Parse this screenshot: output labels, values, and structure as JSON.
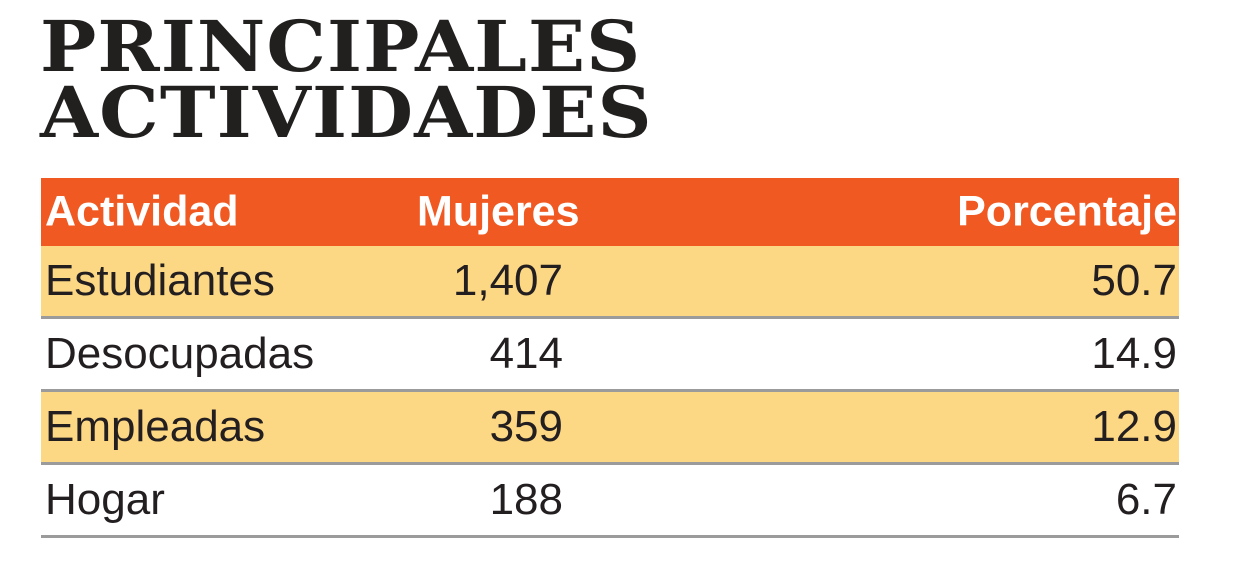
{
  "title": {
    "line1": "PRINCIPALES",
    "line2": "ACTIVIDADES"
  },
  "colors": {
    "header_background": "#f05a22",
    "header_text": "#ffffff",
    "shaded_row": "#fdd884",
    "row_rule": "#9b9b9b",
    "title_text": "#221f1f"
  },
  "chart_data": {
    "type": "table",
    "title": "PRINCIPALES ACTIVIDADES",
    "columns": [
      "Actividad",
      "Mujeres",
      "Porcentaje"
    ],
    "rows": [
      {
        "activity": "Estudiantes",
        "women": "1,407",
        "percent": "50.7",
        "shaded": true
      },
      {
        "activity": "Desocupadas",
        "women": "414",
        "percent": "14.9",
        "shaded": false
      },
      {
        "activity": "Empleadas",
        "women": "359",
        "percent": "12.9",
        "shaded": true
      },
      {
        "activity": "Hogar",
        "women": "188",
        "percent": "6.7",
        "shaded": false
      }
    ]
  }
}
